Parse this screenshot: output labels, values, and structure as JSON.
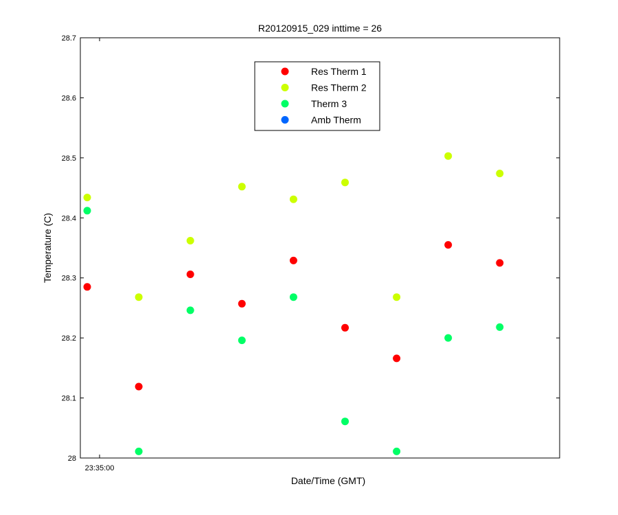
{
  "chart_data": {
    "type": "scatter",
    "title": "R20120915_029 inttime = 26",
    "xlabel": "Date/Time (GMT)",
    "ylabel": "Temperature (C)",
    "ylim": [
      28,
      28.7
    ],
    "yticks": [
      "28",
      "28.1",
      "28.2",
      "28.3",
      "28.4",
      "28.5",
      "28.6",
      "28.7"
    ],
    "xtick_labels": [
      "23:35:00"
    ],
    "x": [
      1,
      2,
      3,
      4,
      5,
      6,
      7,
      8,
      9
    ],
    "series": [
      {
        "name": "Res Therm 1",
        "color": "#ff0000",
        "values": [
          28.285,
          28.119,
          28.306,
          28.257,
          28.329,
          28.217,
          28.166,
          28.355,
          28.325
        ]
      },
      {
        "name": "Res Therm 2",
        "color": "#ccff00",
        "values": [
          28.434,
          28.268,
          28.362,
          28.452,
          28.431,
          28.459,
          28.268,
          28.503,
          28.474
        ]
      },
      {
        "name": "Therm 3",
        "color": "#00ff66",
        "values": [
          28.412,
          28.011,
          28.246,
          28.196,
          28.268,
          28.061,
          28.011,
          28.2,
          28.218
        ]
      },
      {
        "name": "Amb Therm",
        "color": "#0066ff",
        "values": []
      }
    ],
    "grid": false,
    "legend_position": "top-center"
  }
}
